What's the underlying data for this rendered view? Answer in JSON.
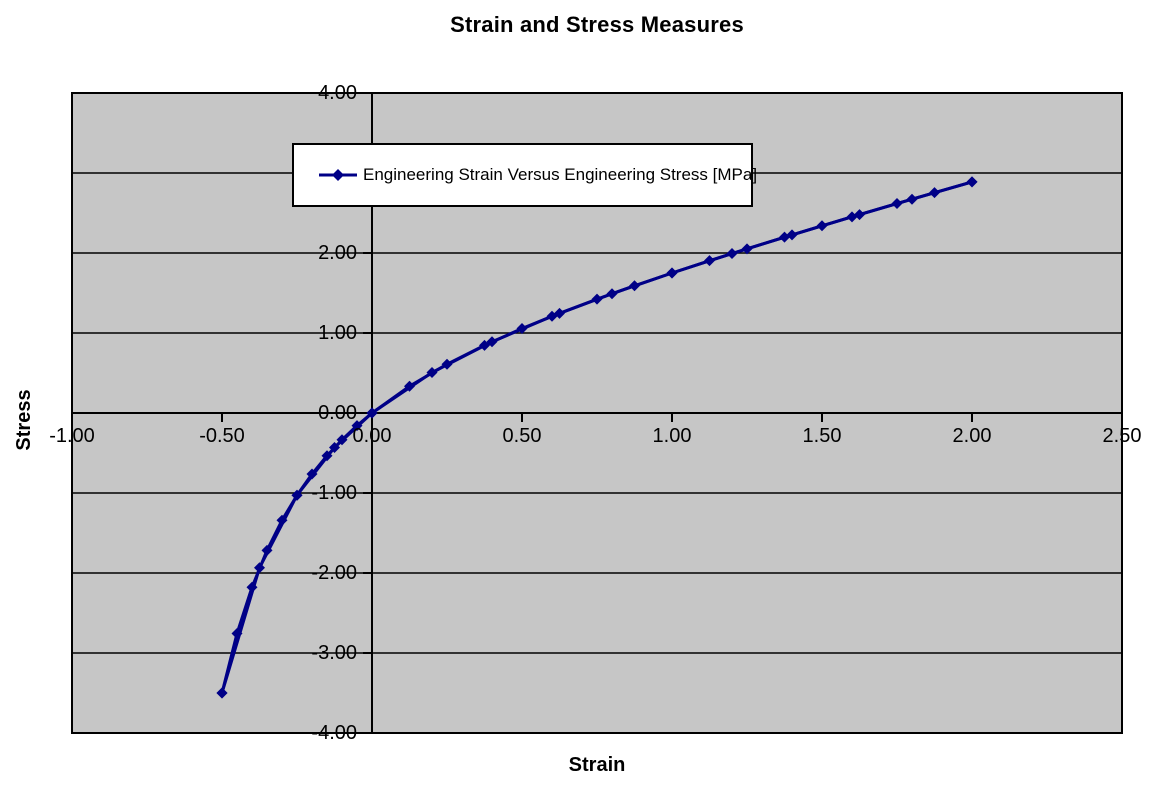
{
  "chart_data": {
    "type": "line",
    "title": "Strain and Stress Measures",
    "xlabel": "Strain",
    "ylabel": "Stress",
    "xlim": [
      -1.0,
      2.5
    ],
    "ylim": [
      -4.0,
      4.0
    ],
    "xtick_values": [
      -1.0,
      -0.5,
      0.0,
      0.5,
      1.0,
      1.5,
      2.0,
      2.5
    ],
    "xtick_labels": [
      "-1.00",
      "-0.50",
      "0.00",
      "0.50",
      "1.00",
      "1.50",
      "2.00",
      "2.50"
    ],
    "ytick_values": [
      4.0,
      3.0,
      2.0,
      1.0,
      0.0,
      -1.0,
      -2.0,
      -3.0,
      -4.0
    ],
    "ytick_labels": [
      "4.00",
      "3.00",
      "2.00",
      "1.00",
      "0.00",
      "-1.00",
      "-2.00",
      "-3.00",
      "-4.00"
    ],
    "grid": "horizontal-only",
    "gridline_color": "#000000",
    "plot_background": "#C6C6C6",
    "axis_color": "#000000",
    "legend": {
      "position": "inside-top-center",
      "entries": [
        "Engineering Strain Versus Engineering Stress [MPa]"
      ]
    },
    "series": [
      {
        "name": "Engineering Strain Versus Engineering Stress [MPa]",
        "color": "#000087",
        "marker": "diamond",
        "points": [
          [
            -0.5,
            -3.5
          ],
          [
            -0.45,
            -2.756
          ],
          [
            -0.4,
            -2.178
          ],
          [
            -0.35,
            -1.717
          ],
          [
            -0.3,
            -1.341
          ],
          [
            -0.25,
            -1.028
          ],
          [
            -0.2,
            -0.763
          ],
          [
            -0.15,
            -0.534
          ],
          [
            -0.1,
            -0.335
          ],
          [
            -0.05,
            -0.158
          ],
          [
            0.0,
            0.0
          ],
          [
            0.2,
            0.506
          ],
          [
            0.4,
            0.89
          ],
          [
            0.6,
            1.209
          ],
          [
            0.8,
            1.491
          ],
          [
            1.0,
            1.75
          ],
          [
            1.2,
            1.993
          ],
          [
            1.4,
            2.226
          ],
          [
            1.6,
            2.452
          ],
          [
            1.8,
            2.672
          ],
          [
            2.0,
            2.889
          ]
        ]
      },
      {
        "name": "",
        "color": "#000087",
        "marker": "diamond",
        "points": [
          [
            -0.5,
            -3.5
          ],
          [
            -0.375,
            -1.935
          ],
          [
            -0.25,
            -1.028
          ],
          [
            -0.125,
            -0.431
          ],
          [
            0.0,
            0.0
          ],
          [
            0.125,
            0.335
          ],
          [
            0.25,
            0.61
          ],
          [
            0.375,
            0.846
          ],
          [
            0.5,
            1.056
          ],
          [
            0.625,
            1.246
          ],
          [
            0.75,
            1.423
          ],
          [
            0.875,
            1.591
          ],
          [
            1.0,
            1.75
          ],
          [
            1.125,
            1.904
          ],
          [
            1.25,
            2.052
          ],
          [
            1.375,
            2.198
          ],
          [
            1.5,
            2.34
          ],
          [
            1.625,
            2.48
          ],
          [
            1.75,
            2.618
          ],
          [
            1.875,
            2.754
          ],
          [
            2.0,
            2.889
          ]
        ]
      }
    ]
  }
}
